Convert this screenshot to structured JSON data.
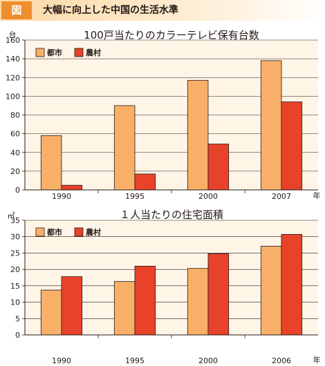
{
  "header": {
    "badge": "図",
    "title": "大幅に向上した中国の生活水準"
  },
  "colors": {
    "urban": "#f8b068",
    "rural": "#e8432a",
    "background": "#fff5e7",
    "badge": "#ef8e2c"
  },
  "chart_data": [
    {
      "type": "bar",
      "title": "100戸当たりのカラーテレビ保有台数",
      "unit_label": "台",
      "x_unit_label": "年",
      "categories": [
        "1990",
        "1995",
        "2000",
        "2007"
      ],
      "series": [
        {
          "name": "都市",
          "values": [
            58,
            90,
            117,
            138
          ]
        },
        {
          "name": "農村",
          "values": [
            5,
            17,
            49,
            94
          ]
        }
      ],
      "ylim": [
        0,
        160
      ],
      "yticks": [
        "0",
        "20",
        "40",
        "60",
        "80",
        "100",
        "120",
        "140",
        "160"
      ],
      "grid": true,
      "legend_position": "top-left"
    },
    {
      "type": "bar",
      "title": "１人当たりの住宅面積",
      "unit_label": "㎡",
      "x_unit_label": "年",
      "categories": [
        "1990",
        "1995",
        "2000",
        "2006"
      ],
      "series": [
        {
          "name": "都市",
          "values": [
            13.7,
            16.3,
            20.3,
            27.1
          ]
        },
        {
          "name": "農村",
          "values": [
            17.8,
            21.0,
            24.8,
            30.7
          ]
        }
      ],
      "ylim": [
        0,
        35
      ],
      "yticks": [
        "0",
        "5",
        "10",
        "15",
        "20",
        "25",
        "30",
        "35"
      ],
      "grid": true,
      "legend_position": "top-left"
    }
  ]
}
